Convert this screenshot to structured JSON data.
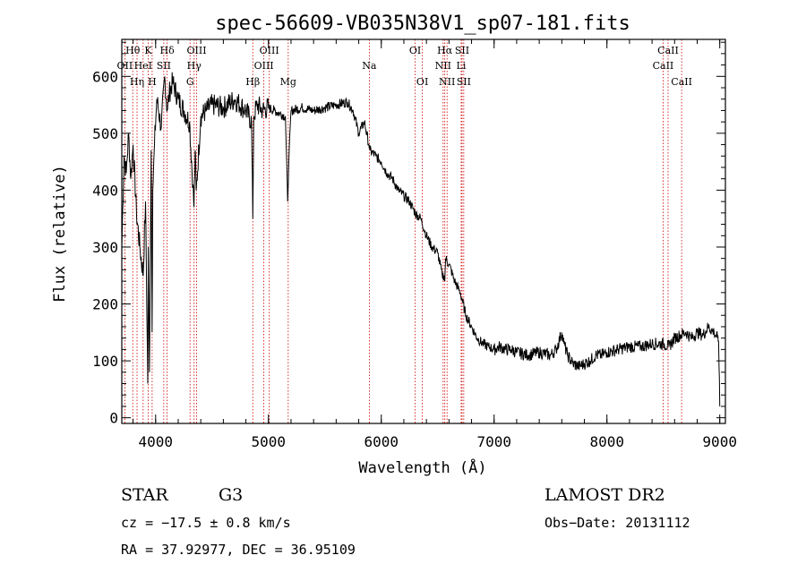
{
  "chart_data": {
    "type": "line",
    "title": "spec-56609-VB035N38V1_sp07-181.fits",
    "xlabel": "Wavelength (Å)",
    "ylabel": "Flux (relative)",
    "xlim": [
      3700,
      9050
    ],
    "ylim": [
      -10,
      665
    ],
    "x_ticks": [
      4000,
      5000,
      6000,
      7000,
      8000,
      9000
    ],
    "y_ticks": [
      0,
      100,
      200,
      300,
      400,
      500,
      600
    ],
    "grid": false,
    "spectrum": {
      "x": [
        3700,
        3720,
        3740,
        3760,
        3780,
        3800,
        3830,
        3860,
        3890,
        3910,
        3930,
        3935,
        3945,
        3960,
        3968,
        3975,
        3990,
        4010,
        4050,
        4080,
        4102,
        4120,
        4150,
        4200,
        4250,
        4300,
        4330,
        4340,
        4350,
        4360,
        4400,
        4450,
        4500,
        4600,
        4700,
        4800,
        4850,
        4861,
        4870,
        4900,
        4950,
        5000,
        5050,
        5100,
        5150,
        5170,
        5180,
        5200,
        5300,
        5400,
        5500,
        5600,
        5700,
        5750,
        5800,
        5850,
        5890,
        5900,
        5950,
        6000,
        6050,
        6100,
        6150,
        6200,
        6250,
        6300,
        6350,
        6400,
        6450,
        6500,
        6540,
        6555,
        6563,
        6570,
        6600,
        6650,
        6700,
        6750,
        6800,
        6850,
        6900,
        6950,
        7000,
        7050,
        7100,
        7150,
        7200,
        7300,
        7400,
        7500,
        7550,
        7600,
        7620,
        7650,
        7700,
        7750,
        7800,
        7850,
        7900,
        7950,
        8000,
        8100,
        8200,
        8300,
        8400,
        8500,
        8550,
        8600,
        8650,
        8700,
        8750,
        8800,
        8850,
        8900,
        8950,
        8980,
        8990,
        9000
      ],
      "y": [
        300,
        460,
        430,
        500,
        420,
        480,
        360,
        300,
        250,
        380,
        60,
        300,
        80,
        470,
        150,
        400,
        480,
        560,
        510,
        600,
        540,
        570,
        590,
        560,
        540,
        520,
        410,
        370,
        470,
        400,
        530,
        540,
        550,
        545,
        560,
        540,
        520,
        350,
        530,
        550,
        540,
        545,
        540,
        535,
        530,
        380,
        450,
        540,
        545,
        540,
        545,
        550,
        555,
        540,
        500,
        520,
        480,
        470,
        460,
        450,
        430,
        420,
        400,
        390,
        380,
        360,
        350,
        320,
        300,
        290,
        250,
        250,
        240,
        280,
        270,
        240,
        220,
        180,
        160,
        140,
        130,
        125,
        120,
        125,
        120,
        120,
        115,
        110,
        115,
        110,
        120,
        150,
        130,
        110,
        95,
        90,
        95,
        100,
        110,
        110,
        115,
        120,
        125,
        125,
        130,
        130,
        125,
        140,
        145,
        150,
        140,
        150,
        145,
        160,
        150,
        140,
        135,
        20
      ]
    },
    "lines": [
      {
        "label": "Hθ",
        "x": 3797,
        "row": 0
      },
      {
        "label": "OII",
        "x": 3727,
        "row": 1
      },
      {
        "label": "Hη",
        "x": 3835,
        "row": 2
      },
      {
        "label": "HeI",
        "x": 3889,
        "row": 1
      },
      {
        "label": "K",
        "x": 3934,
        "row": 0
      },
      {
        "label": "H",
        "x": 3969,
        "row": 2
      },
      {
        "label": "Hδ",
        "x": 4102,
        "row": 0
      },
      {
        "label": "SII",
        "x": 4072,
        "row": 1
      },
      {
        "label": "OIII",
        "x": 4363,
        "row": 0
      },
      {
        "label": "Hγ",
        "x": 4341,
        "row": 1
      },
      {
        "label": "G",
        "x": 4305,
        "row": 2
      },
      {
        "label": "Hβ",
        "x": 4861,
        "row": 2
      },
      {
        "label": "OIII",
        "x": 5007,
        "row": 0
      },
      {
        "label": "OIII",
        "x": 4959,
        "row": 1
      },
      {
        "label": "Mg",
        "x": 5175,
        "row": 2
      },
      {
        "label": "Na",
        "x": 5894,
        "row": 1
      },
      {
        "label": "OI",
        "x": 6300,
        "row": 0
      },
      {
        "label": "OI",
        "x": 6364,
        "row": 2
      },
      {
        "label": "Hα",
        "x": 6563,
        "row": 0
      },
      {
        "label": "NII",
        "x": 6548,
        "row": 1
      },
      {
        "label": "NII",
        "x": 6583,
        "row": 2
      },
      {
        "label": "SII",
        "x": 6716,
        "row": 0
      },
      {
        "label": "Li",
        "x": 6708,
        "row": 1
      },
      {
        "label": "SII",
        "x": 6731,
        "row": 2
      },
      {
        "label": "CaII",
        "x": 8542,
        "row": 0
      },
      {
        "label": "CaII",
        "x": 8498,
        "row": 1
      },
      {
        "label": "CaII",
        "x": 8662,
        "row": 2
      }
    ]
  },
  "info": {
    "object_class": "STAR",
    "subclass": "G3",
    "survey": "LAMOST DR2",
    "redshift": "cz = −17.5 ± 0.8 km/s",
    "obs_date": "Obs−Date: 20131112",
    "coords": "RA =  37.92977, DEC =  36.95109"
  },
  "colors": {
    "spectrum": "#000000",
    "line_markers": "#cc0000",
    "axes": "#000000"
  }
}
